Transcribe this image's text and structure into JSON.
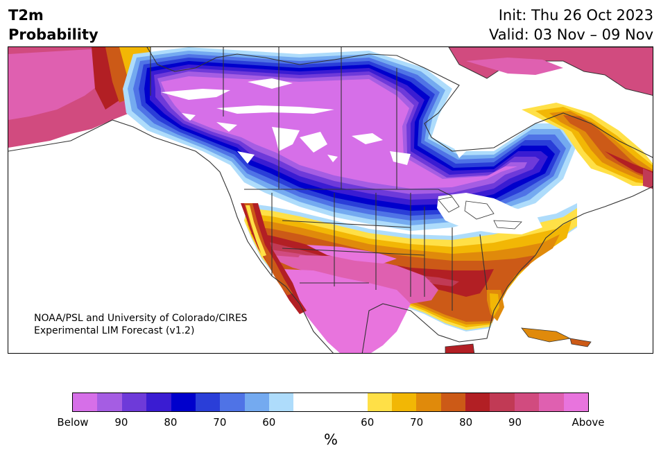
{
  "header": {
    "title_line1": "T2m",
    "title_line2": "Probability",
    "init": "Init: Thu 26 Oct 2023",
    "valid": "Valid: 03 Nov – 09 Nov"
  },
  "credit": {
    "line1": "NOAA/PSL and University of Colorado/CIRES",
    "line2": "Experimental LIM Forecast (v1.2)"
  },
  "colorbar": {
    "unit": "%",
    "tick_labels": [
      "Below",
      "90",
      "80",
      "70",
      "60",
      "60",
      "70",
      "80",
      "90",
      "Above"
    ],
    "colors_below": [
      "#d66fe8",
      "#a55de3",
      "#6e3ad9",
      "#3a1cd2",
      "#0000cc",
      "#2a3ed8",
      "#4f73e6",
      "#74aaf0",
      "#aedcfb"
    ],
    "color_neutral": "#ffffff",
    "colors_above": [
      "#ffe047",
      "#f2b705",
      "#e08a0b",
      "#cc5a17",
      "#b21f24",
      "#c13a55",
      "#d14b7f",
      "#df60b0",
      "#e874dd"
    ]
  }
}
